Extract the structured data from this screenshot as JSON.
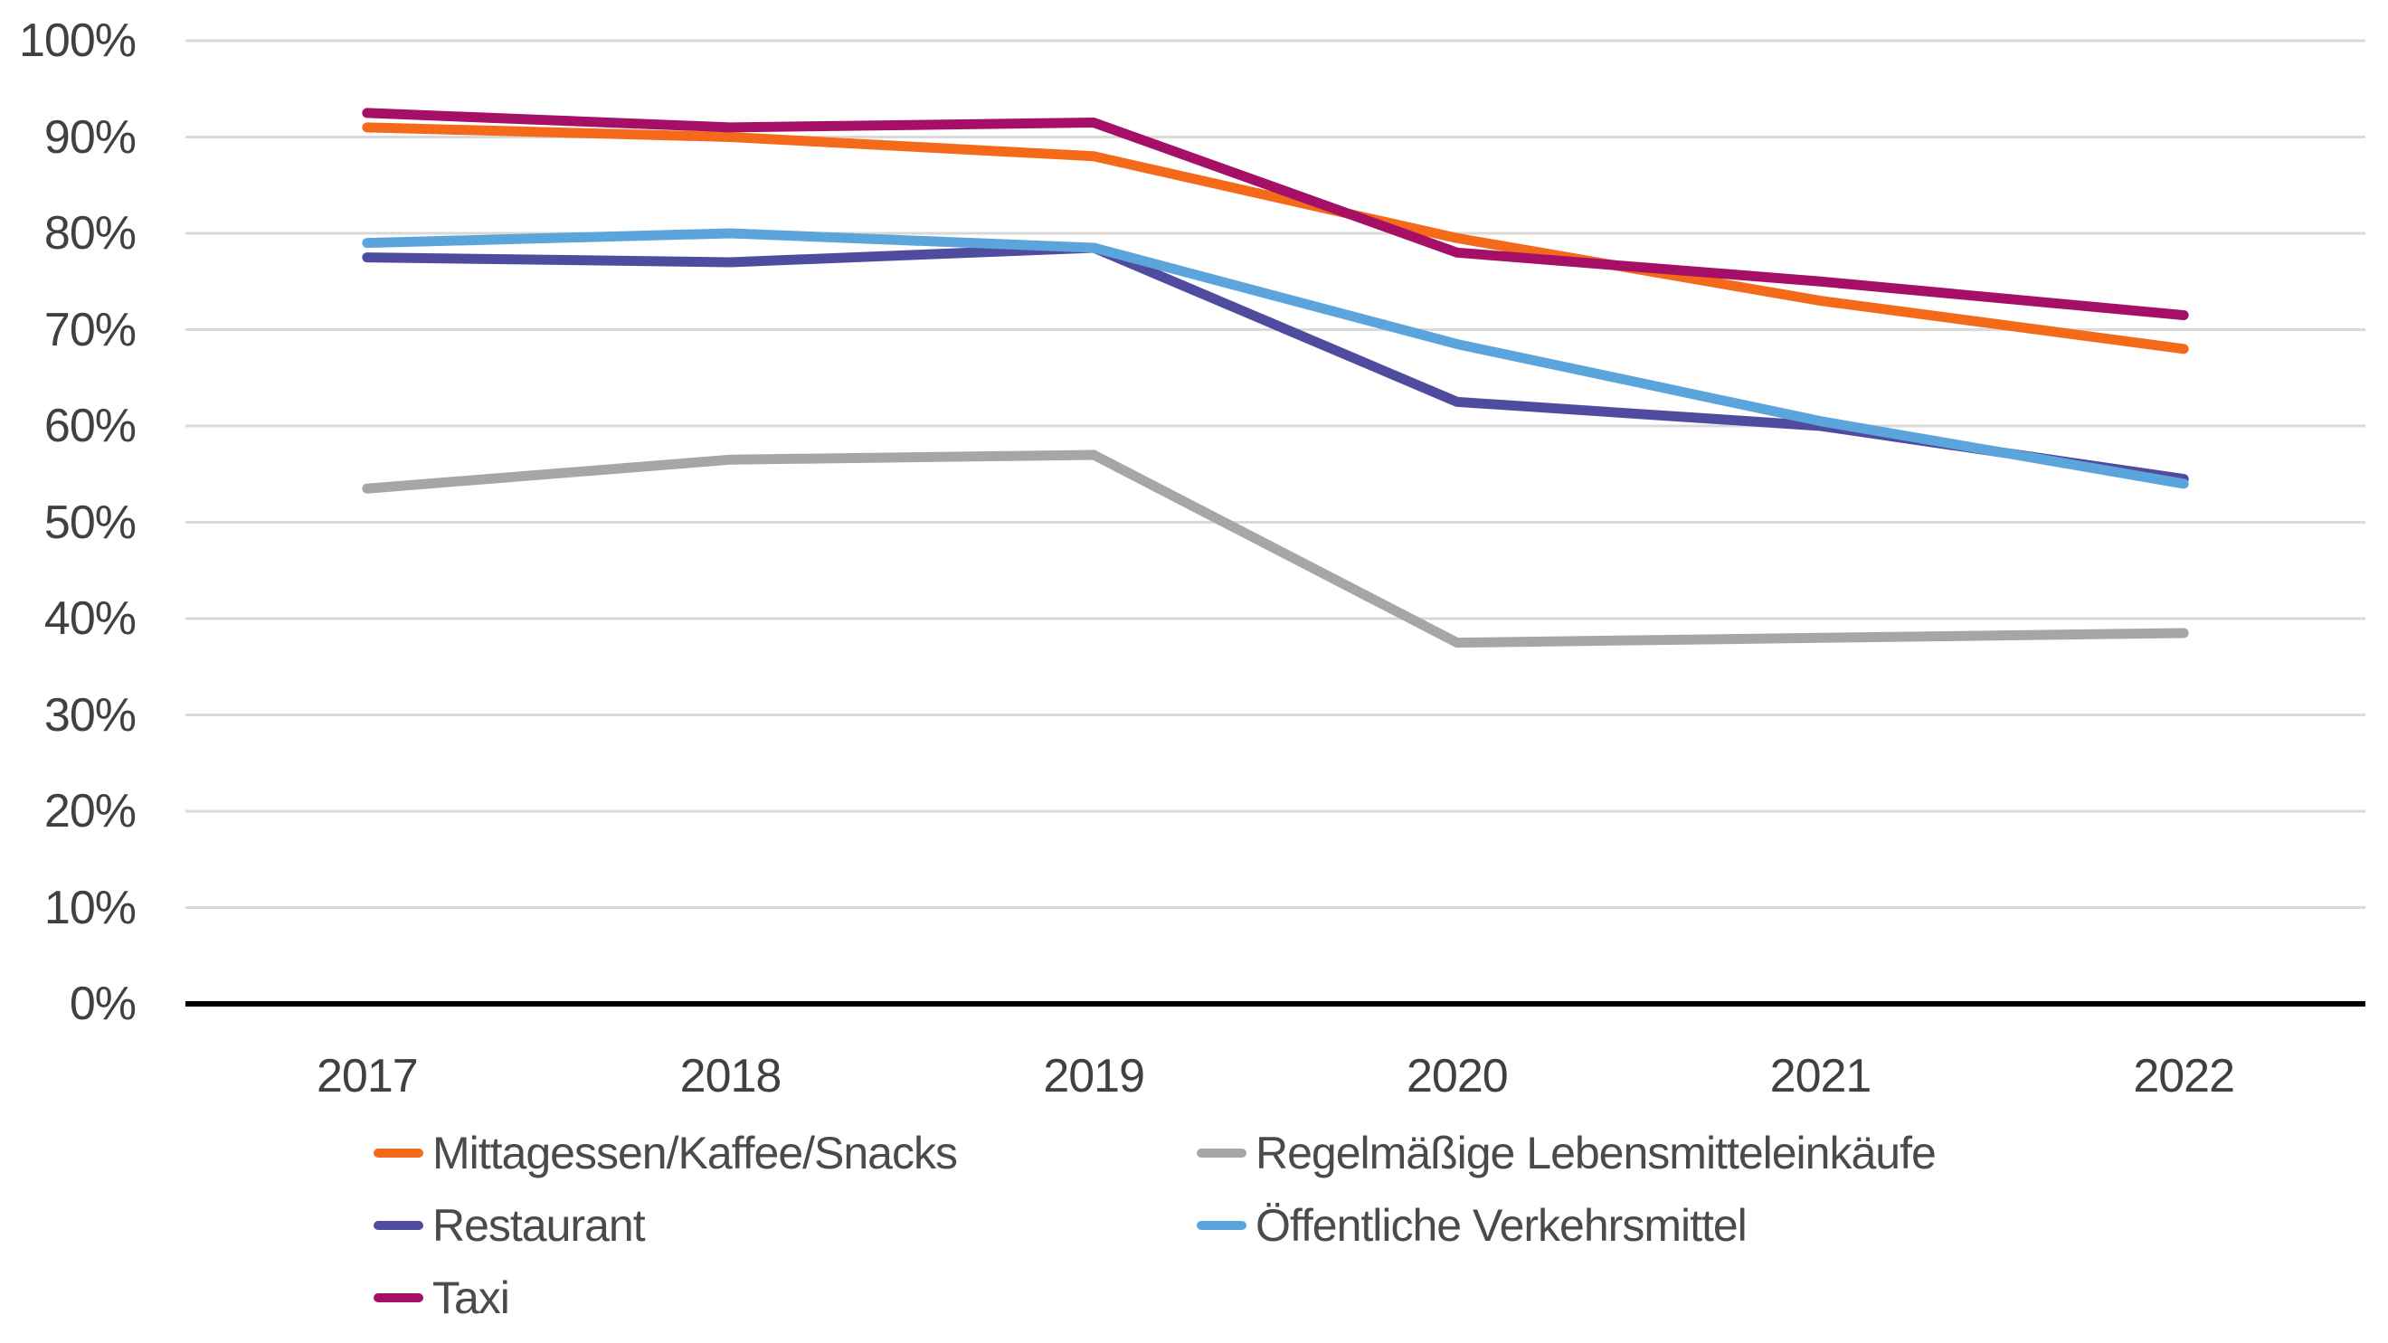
{
  "chart_data": {
    "type": "line",
    "title": "",
    "xlabel": "",
    "ylabel": "",
    "categories": [
      "2017",
      "2018",
      "2019",
      "2020",
      "2021",
      "2022"
    ],
    "series": [
      {
        "name": "Mittagessen/Kaffee/Snacks",
        "color": "#F5691A",
        "values": [
          91,
          90,
          88,
          79.5,
          73,
          68
        ]
      },
      {
        "name": "Regelmäßige Lebensmitteleinkäufe",
        "color": "#A6A6A6",
        "values": [
          53.5,
          56.5,
          57,
          37.5,
          38,
          38.5
        ]
      },
      {
        "name": "Restaurant",
        "color": "#4F4C9F",
        "values": [
          77.5,
          77,
          78.5,
          62.5,
          60,
          54.5
        ]
      },
      {
        "name": "Öffentliche Verkehrsmittel",
        "color": "#5BA5DC",
        "values": [
          79,
          80,
          78.5,
          68.5,
          60.5,
          54
        ]
      },
      {
        "name": "Taxi",
        "color": "#A50F66",
        "values": [
          92.5,
          91,
          91.5,
          78,
          75,
          71.5
        ]
      }
    ],
    "ylim": [
      0,
      100
    ],
    "y_tick_step": 10,
    "y_tick_suffix": "%",
    "grid": true,
    "gridline_color": "#D9D9D9",
    "axis_line_color": "#000000",
    "tick_label_color": "#404040",
    "legend_text_color": "#4a4a4a",
    "legend_position": "bottom"
  }
}
